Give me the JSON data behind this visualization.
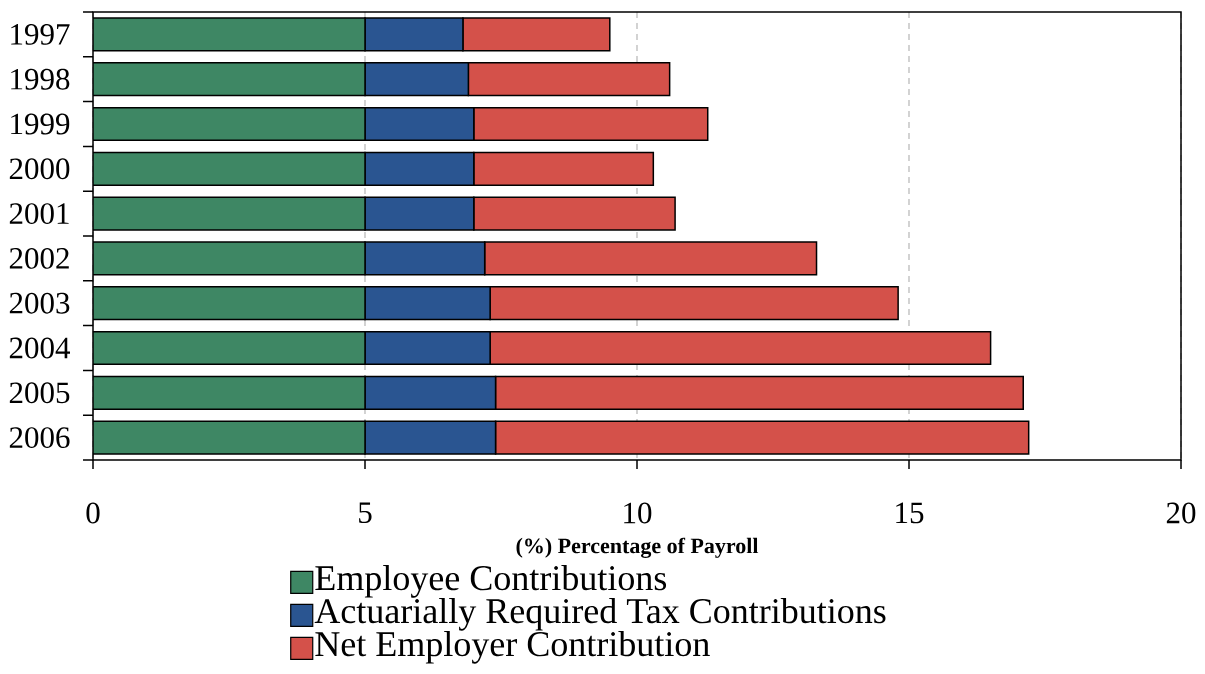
{
  "chart_data": {
    "type": "bar",
    "orientation": "horizontal",
    "stacked": true,
    "categories": [
      "1997",
      "1998",
      "1999",
      "2000",
      "2001",
      "2002",
      "2003",
      "2004",
      "2005",
      "2006"
    ],
    "series": [
      {
        "name": "Employee Contributions",
        "color": "#3e8764",
        "values": [
          5,
          5,
          5,
          5,
          5,
          5,
          5,
          5,
          5,
          5
        ]
      },
      {
        "name": "Actuarially Required Tax Contributions",
        "color": "#2a5591",
        "values": [
          1.8,
          1.9,
          2.0,
          2.0,
          2.0,
          2.2,
          2.3,
          2.3,
          2.4,
          2.4
        ]
      },
      {
        "name": "Net Employer Contribution",
        "color": "#d4514a",
        "values": [
          2.7,
          3.7,
          4.3,
          3.3,
          3.7,
          6.1,
          7.5,
          9.2,
          9.7,
          9.8
        ]
      }
    ],
    "xlabel": "(%) Percentage of Payroll",
    "xlim": [
      0,
      20
    ],
    "xticks": [
      0,
      5,
      10,
      15,
      20
    ],
    "grid": "x",
    "legend": "bottom"
  }
}
